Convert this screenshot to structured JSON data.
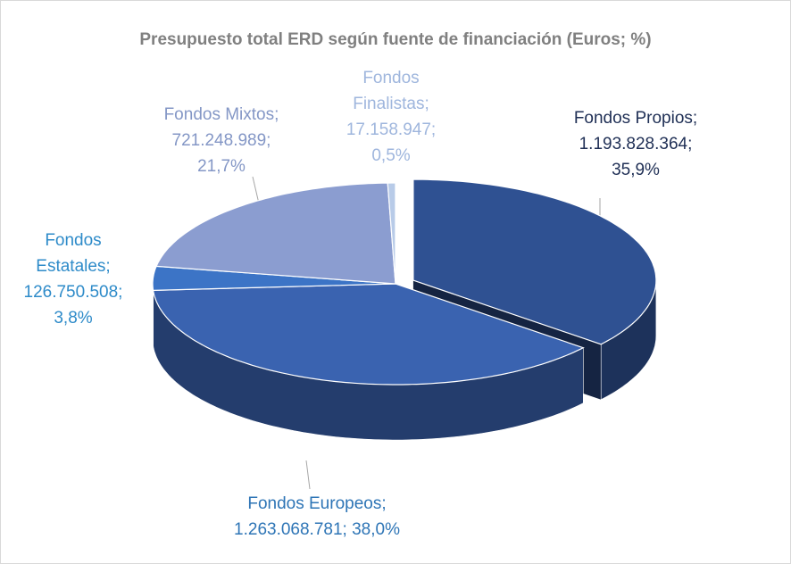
{
  "chart_data": {
    "type": "pie3d",
    "title": "Presupuesto total ERD según fuente de financiación (Euros; %)",
    "values": [
      1193828364,
      1263068781,
      126750508,
      721248989,
      17158947
    ],
    "percents": [
      35.9,
      38.0,
      3.8,
      21.7,
      0.5
    ],
    "labels": [
      [
        "Fondos Propios;",
        "1.193.828.364;",
        "35,9%"
      ],
      [
        "Fondos Europeos;",
        "1.263.068.781; 38,0%"
      ],
      [
        "Fondos",
        "Estatales;",
        "126.750.508;",
        "3,8%"
      ],
      [
        "Fondos Mixtos;",
        "721.248.989;",
        "21,7%"
      ],
      [
        "Fondos",
        "Finalistas;",
        "17.158.947;",
        "0,5%"
      ]
    ],
    "colors": [
      "#2f5192",
      "#3a63b0",
      "#3c74c6",
      "#8b9dd0",
      "#b8cbe8"
    ],
    "label_colors": [
      "#1f2f55",
      "#2e75b6",
      "#2e8bc9",
      "#8497c6",
      "#9fb6dd"
    ]
  }
}
